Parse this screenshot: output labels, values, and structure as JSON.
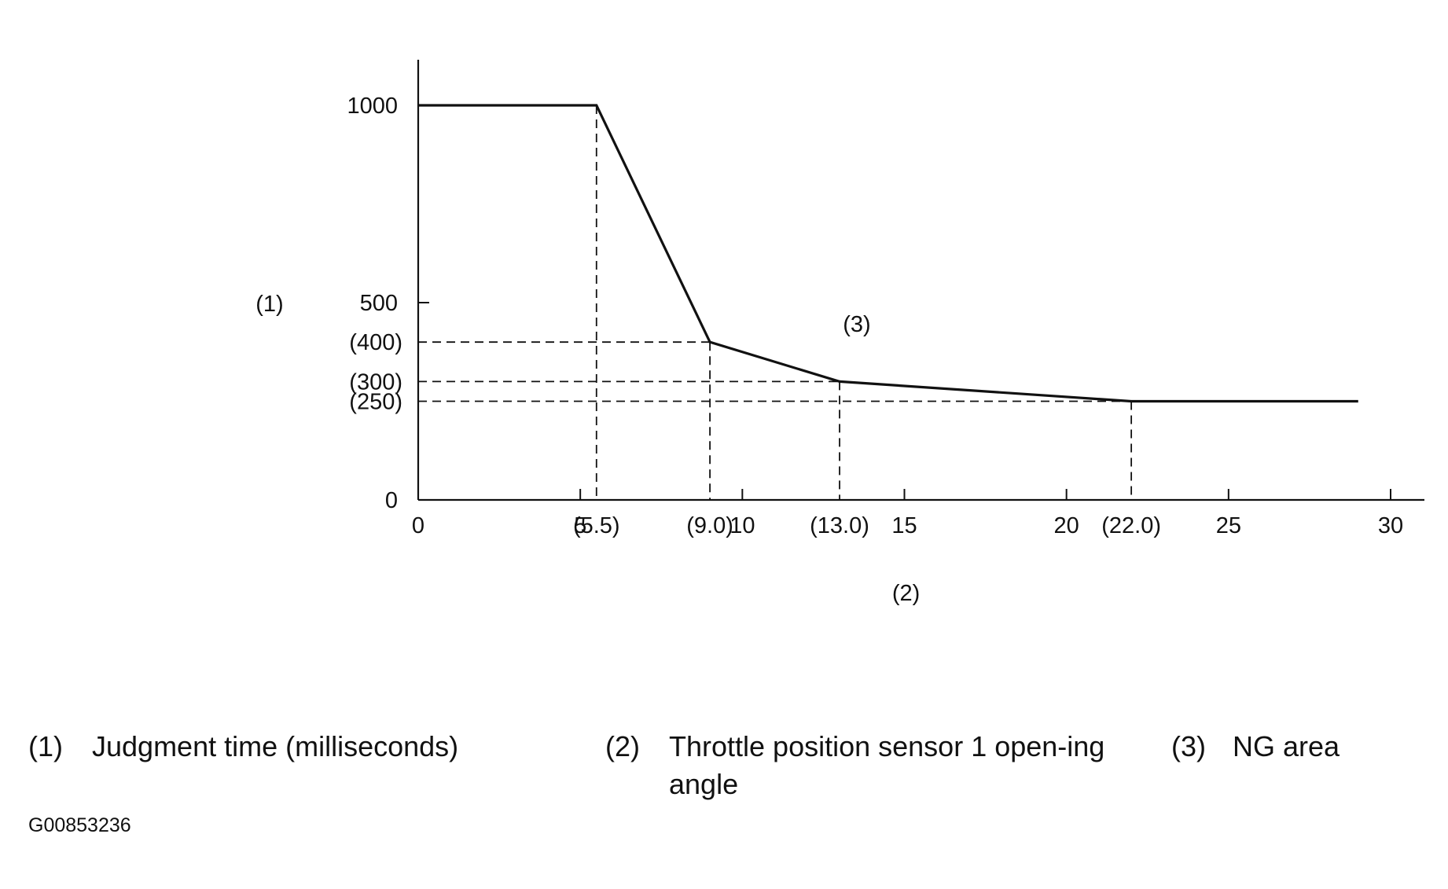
{
  "chart_data": {
    "type": "line",
    "x": [
      0,
      5.5,
      9.0,
      13.0,
      22.0,
      29.0
    ],
    "y": [
      1000,
      1000,
      400,
      300,
      250,
      250
    ],
    "xlim": [
      0,
      30
    ],
    "ylim": [
      0,
      1000
    ],
    "x_ticks": [
      0,
      5,
      10,
      15,
      20,
      25,
      30
    ],
    "x_tick_labels": [
      "0",
      "5",
      "10",
      "15",
      "20",
      "25",
      "30"
    ],
    "y_ticks": [
      0,
      500,
      1000
    ],
    "y_tick_labels": [
      "0",
      "500",
      "1000"
    ],
    "x_markers": [
      {
        "value": 5.5,
        "label": "(5.5)"
      },
      {
        "value": 9.0,
        "label": "(9.0)"
      },
      {
        "value": 13.0,
        "label": "(13.0)"
      },
      {
        "value": 22.0,
        "label": "(22.0)"
      }
    ],
    "y_markers": [
      {
        "value": 400,
        "label": "(400)"
      },
      {
        "value": 300,
        "label": "(300)"
      },
      {
        "value": 250,
        "label": "(250)"
      }
    ],
    "xlabel": "(2)",
    "ylabel": "(1)",
    "region_label": "(3)",
    "grid": false
  },
  "legend": [
    {
      "num": "(1)",
      "text": "Judgment time (milliseconds)"
    },
    {
      "num": "(2)",
      "text": "Throttle position sensor 1 open-ing angle"
    },
    {
      "num": "(3)",
      "text": "NG area"
    }
  ],
  "figure_code": "G00853236"
}
